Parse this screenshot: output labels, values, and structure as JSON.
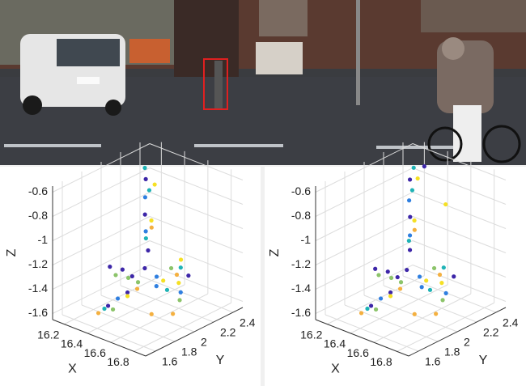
{
  "chart_data": [
    {
      "type": "scatter3d",
      "xlabel": "X",
      "ylabel": "Y",
      "zlabel": "Z",
      "xlim": [
        16.1,
        16.9
      ],
      "ylim": [
        1.5,
        2.5
      ],
      "zlim": [
        -1.65,
        -0.55
      ],
      "xticks": [
        16.2,
        16.4,
        16.6,
        16.8
      ],
      "yticks": [
        1.6,
        1.8,
        2,
        2.2,
        2.4
      ],
      "zticks": [
        -0.6,
        -0.8,
        -1,
        -1.2,
        -1.4,
        -1.6
      ],
      "grid": true,
      "series": [
        {
          "color": "#3d26a8",
          "x": [
            16.4,
            16.41,
            16.42,
            16.4,
            16.1,
            16.2,
            16.3,
            16.41,
            16.41,
            16.6
          ],
          "y": [
            2.1,
            2.08,
            2.1,
            2.09,
            2.09,
            2.1,
            2.08,
            1.7,
            1.9,
            2.3
          ],
          "z": [
            -0.62,
            -0.9,
            -1.2,
            -1.35,
            -1.45,
            -1.44,
            -1.45,
            -1.5,
            -1.47,
            -1.42
          ]
        },
        {
          "color": "#2f7fe0",
          "x": [
            16.42,
            16.4,
            16.5,
            16.7,
            16.41,
            16.41
          ],
          "y": [
            2.07,
            2.1,
            2.09,
            2.1,
            1.8,
            2.2
          ],
          "z": [
            -0.75,
            -1.05,
            -1.46,
            -1.44,
            -1.48,
            -1.46
          ]
        },
        {
          "color": "#1fb3b6",
          "x": [
            16.43,
            16.41,
            16.6,
            16.42,
            16.45,
            16.1
          ],
          "y": [
            2.1,
            2.09,
            2.08,
            1.65,
            2.4,
            2.45
          ],
          "z": [
            -0.7,
            -1.1,
            -1.45,
            -1.5,
            -1.45,
            -0.78
          ]
        },
        {
          "color": "#8cc46a",
          "x": [
            16.15,
            16.25,
            16.35,
            16.41,
            16.41,
            16.7
          ],
          "y": [
            2.09,
            2.1,
            2.08,
            1.75,
            2.35,
            2.09
          ],
          "z": [
            -1.5,
            -1.49,
            -1.48,
            -1.55,
            -1.45,
            -1.5
          ]
        },
        {
          "color": "#f4b040",
          "x": [
            16.45,
            16.8,
            16.7,
            16.41,
            16.41,
            16.5
          ],
          "y": [
            2.1,
            1.9,
            1.8,
            1.6,
            2.0,
            2.3
          ],
          "z": [
            -1.0,
            -1.5,
            -1.5,
            -1.52,
            -1.48,
            -1.45
          ]
        },
        {
          "color": "#f5e024",
          "x": [
            16.46,
            16.44,
            16.55,
            16.41,
            16.6,
            16.41
          ],
          "y": [
            2.12,
            2.11,
            2.1,
            1.9,
            2.2,
            2.45
          ],
          "z": [
            -0.65,
            -0.95,
            -1.4,
            -1.5,
            -1.44,
            -1.42
          ]
        }
      ]
    },
    {
      "type": "scatter3d",
      "xlabel": "X",
      "ylabel": "Y",
      "zlabel": "Z",
      "xlim": [
        16.1,
        16.9
      ],
      "ylim": [
        1.5,
        2.5
      ],
      "zlim": [
        -1.65,
        -0.55
      ],
      "xticks": [
        16.2,
        16.4,
        16.6,
        16.8
      ],
      "yticks": [
        1.6,
        1.8,
        2,
        2.2,
        2.4
      ],
      "zticks": [
        -0.6,
        -0.8,
        -1,
        -1.2,
        -1.4,
        -1.6
      ],
      "grid": true,
      "series": [
        {
          "color": "#3d26a8",
          "x": [
            16.41,
            16.42,
            16.41,
            16.4,
            16.12,
            16.22,
            16.32,
            16.41,
            16.41,
            16.62,
            16.2
          ],
          "y": [
            2.1,
            2.09,
            2.1,
            2.08,
            2.09,
            2.1,
            2.08,
            1.7,
            1.9,
            2.3,
            2.5
          ],
          "z": [
            -0.62,
            -0.92,
            -1.2,
            -1.36,
            -1.46,
            -1.45,
            -1.45,
            -1.5,
            -1.47,
            -1.42,
            -0.75
          ]
        },
        {
          "color": "#2f7fe0",
          "x": [
            16.42,
            16.41,
            16.52,
            16.72,
            16.41,
            16.41
          ],
          "y": [
            2.08,
            2.1,
            2.09,
            2.1,
            1.8,
            2.2
          ],
          "z": [
            -0.78,
            -1.08,
            -1.46,
            -1.44,
            -1.48,
            -1.46
          ]
        },
        {
          "color": "#1fb3b6",
          "x": [
            16.43,
            16.41,
            16.6,
            16.42,
            16.45,
            16.15
          ],
          "y": [
            2.1,
            2.09,
            2.08,
            1.65,
            2.4,
            2.45
          ],
          "z": [
            -0.7,
            -1.12,
            -1.45,
            -1.5,
            -1.45,
            -0.76
          ]
        },
        {
          "color": "#8cc46a",
          "x": [
            16.15,
            16.25,
            16.35,
            16.41,
            16.41,
            16.7
          ],
          "y": [
            2.09,
            2.1,
            2.08,
            1.75,
            2.35,
            2.09
          ],
          "z": [
            -1.5,
            -1.49,
            -1.48,
            -1.55,
            -1.45,
            -1.5
          ]
        },
        {
          "color": "#f4b040",
          "x": [
            16.45,
            16.8,
            16.7,
            16.41,
            16.41,
            16.5
          ],
          "y": [
            2.1,
            1.9,
            1.8,
            1.6,
            2.0,
            2.3
          ],
          "z": [
            -1.02,
            -1.5,
            -1.5,
            -1.52,
            -1.48,
            -1.45
          ]
        },
        {
          "color": "#f5e024",
          "x": [
            16.46,
            16.44,
            16.55,
            16.41,
            16.6,
            16.4
          ],
          "y": [
            2.12,
            2.11,
            2.1,
            1.9,
            2.2,
            2.48
          ],
          "z": [
            -0.6,
            -0.95,
            -1.4,
            -1.5,
            -1.44,
            -0.98
          ]
        }
      ]
    }
  ]
}
